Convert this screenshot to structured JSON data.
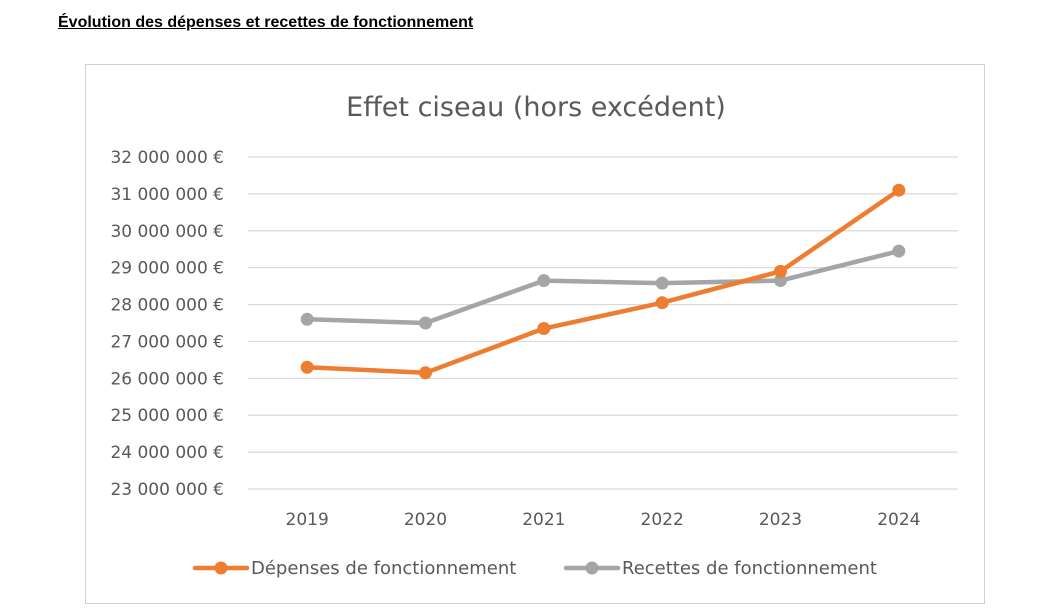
{
  "page": {
    "heading": "Évolution des dépenses et recettes de fonctionnement"
  },
  "chart_data": {
    "type": "line",
    "title": "Effet ciseau (hors excédent)",
    "xlabel": "",
    "ylabel": "",
    "categories": [
      "2019",
      "2020",
      "2021",
      "2022",
      "2023",
      "2024"
    ],
    "ylim": [
      23000000,
      32000000
    ],
    "yticks": [
      23000000,
      24000000,
      25000000,
      26000000,
      27000000,
      28000000,
      29000000,
      30000000,
      31000000,
      32000000
    ],
    "ytick_labels": [
      "23 000 000 €",
      "24 000 000 €",
      "25 000 000 €",
      "26 000 000 €",
      "27 000 000 €",
      "28 000 000 €",
      "29 000 000 €",
      "30 000 000 €",
      "31 000 000 €",
      "32 000 000 €"
    ],
    "grid": true,
    "legend_position": "bottom",
    "series": [
      {
        "name": "Dépenses de fonctionnement",
        "color": "#ed7d31",
        "values": [
          26300000,
          26150000,
          27350000,
          28050000,
          28900000,
          31100000
        ]
      },
      {
        "name": "Recettes de fonctionnement",
        "color": "#a5a5a5",
        "values": [
          27600000,
          27500000,
          28650000,
          28580000,
          28650000,
          29450000
        ]
      }
    ]
  }
}
